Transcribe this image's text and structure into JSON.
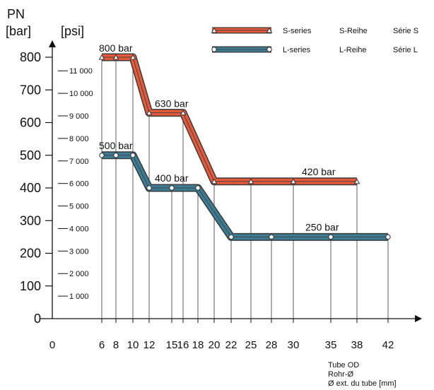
{
  "chart_data": {
    "type": "line",
    "y_label": "PN",
    "y_unit_left": "[bar]",
    "y_unit_right": "[psi]",
    "x_label_lines": [
      "Tube OD",
      "Rohr-Ø",
      "Ø ext. du tube [mm]"
    ],
    "x_ticks": [
      "0",
      "6",
      "8",
      "10",
      "12",
      "15",
      "16",
      "18",
      "20",
      "22",
      "25",
      "28",
      "30",
      "35",
      "38",
      "42"
    ],
    "y_ticks_bar": [
      "0",
      "100",
      "200",
      "300",
      "400",
      "500",
      "600",
      "700",
      "800"
    ],
    "y_ticks_psi": [
      "1 000",
      "2 000",
      "3 000",
      "4 000",
      "5 000",
      "6 000",
      "7 000",
      "8 000",
      "9 000",
      "10 000",
      "11 000"
    ],
    "ylim": [
      0,
      850
    ],
    "series": [
      {
        "name": "S-series",
        "name_de": "S-Reihe",
        "name_fr": "Série S",
        "color": "#e8593a",
        "marker": "triangle",
        "x": [
          6,
          8,
          10,
          12,
          16,
          20,
          25,
          30,
          38
        ],
        "y": [
          800,
          800,
          800,
          630,
          630,
          420,
          420,
          420,
          420
        ]
      },
      {
        "name": "L-series",
        "name_de": "L-Reihe",
        "name_fr": "Série L",
        "color": "#3a7d94",
        "marker": "circle",
        "x": [
          6,
          8,
          10,
          12,
          15,
          18,
          22,
          28,
          35,
          42
        ],
        "y": [
          500,
          500,
          500,
          400,
          400,
          400,
          250,
          250,
          250,
          250
        ]
      }
    ],
    "annotations": [
      {
        "text": "800 bar",
        "x": 6,
        "y": 800
      },
      {
        "text": "630 bar",
        "x": 12,
        "y": 630
      },
      {
        "text": "420 bar",
        "x": 30,
        "y": 420
      },
      {
        "text": "500 bar",
        "x": 6,
        "y": 500
      },
      {
        "text": "400 bar",
        "x": 12,
        "y": 400
      },
      {
        "text": "250 bar",
        "x": 35,
        "y": 250
      }
    ]
  }
}
